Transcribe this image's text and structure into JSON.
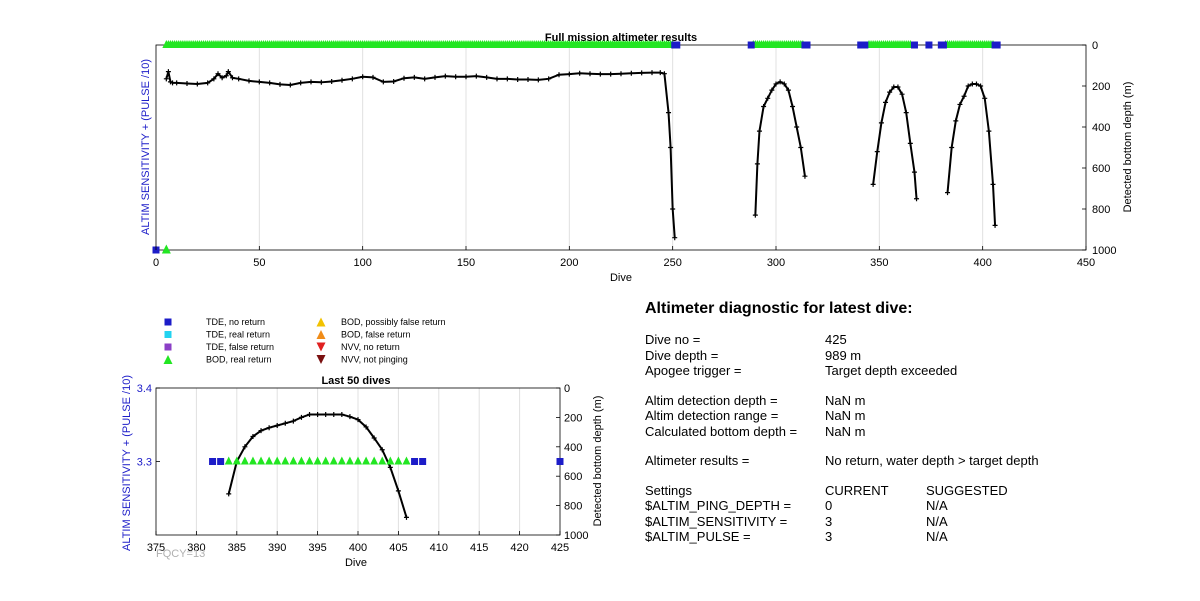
{
  "colors": {
    "tde_no_return": "#1c1cc8",
    "tde_real_return": "#22d3f0",
    "tde_false_return": "#8b3fc6",
    "bod_real_return": "#22e622",
    "bod_possibly_false": "#f2c200",
    "bod_false": "#f08c18",
    "nvv_no_return": "#e02020",
    "nvv_not_pinging": "#7a1010",
    "depth_line": "#000000",
    "left_axis_label": "#1c1cc8",
    "grid": "#e0e0e0"
  },
  "chart_data": [
    {
      "type": "scatter+line",
      "title": "Full mission altimeter results",
      "xlabel": "Dive",
      "ylabel_left": "ALTIM SENSITIVITY + (PULSE /10)",
      "ylabel_right": "Detected bottom depth (m)",
      "xlim": [
        0,
        450
      ],
      "xticks": [
        0,
        50,
        100,
        150,
        200,
        250,
        300,
        350,
        400,
        450
      ],
      "ylim_right": [
        0,
        1000
      ],
      "yticks_right": [
        0,
        200,
        400,
        600,
        800,
        1000
      ],
      "y_right_reversed": true,
      "xgrid": true,
      "depth_segments": [
        [
          [
            5,
            165
          ],
          [
            6,
            130
          ],
          [
            7,
            180
          ],
          [
            8,
            185
          ],
          [
            10,
            185
          ],
          [
            15,
            188
          ],
          [
            20,
            190
          ],
          [
            25,
            185
          ],
          [
            28,
            165
          ],
          [
            30,
            140
          ],
          [
            32,
            160
          ],
          [
            34,
            150
          ],
          [
            35,
            130
          ],
          [
            37,
            160
          ],
          [
            40,
            165
          ],
          [
            45,
            175
          ],
          [
            50,
            180
          ],
          [
            55,
            185
          ],
          [
            60,
            192
          ],
          [
            65,
            195
          ],
          [
            70,
            185
          ],
          [
            75,
            180
          ],
          [
            80,
            182
          ],
          [
            85,
            178
          ],
          [
            90,
            172
          ],
          [
            95,
            165
          ],
          [
            100,
            155
          ],
          [
            105,
            158
          ],
          [
            110,
            180
          ],
          [
            115,
            178
          ],
          [
            120,
            162
          ],
          [
            125,
            158
          ],
          [
            130,
            165
          ],
          [
            135,
            158
          ],
          [
            140,
            152
          ],
          [
            145,
            155
          ],
          [
            150,
            155
          ],
          [
            155,
            152
          ],
          [
            160,
            158
          ],
          [
            165,
            165
          ],
          [
            170,
            165
          ],
          [
            175,
            168
          ],
          [
            180,
            168
          ],
          [
            185,
            170
          ],
          [
            190,
            165
          ],
          [
            195,
            145
          ],
          [
            200,
            142
          ],
          [
            205,
            138
          ],
          [
            210,
            140
          ],
          [
            215,
            142
          ],
          [
            220,
            142
          ],
          [
            225,
            140
          ],
          [
            230,
            138
          ],
          [
            235,
            136
          ],
          [
            240,
            135
          ],
          [
            244,
            135
          ],
          [
            246,
            140
          ],
          [
            248,
            330
          ],
          [
            249,
            500
          ],
          [
            250,
            800
          ],
          [
            251,
            940
          ]
        ],
        [
          [
            290,
            830
          ],
          [
            291,
            580
          ],
          [
            292,
            420
          ],
          [
            294,
            300
          ],
          [
            296,
            260
          ],
          [
            298,
            220
          ],
          [
            300,
            190
          ],
          [
            302,
            180
          ],
          [
            304,
            190
          ],
          [
            306,
            220
          ],
          [
            308,
            300
          ],
          [
            310,
            400
          ],
          [
            312,
            500
          ],
          [
            314,
            640
          ]
        ],
        [
          [
            347,
            680
          ],
          [
            349,
            520
          ],
          [
            351,
            380
          ],
          [
            353,
            280
          ],
          [
            355,
            230
          ],
          [
            357,
            205
          ],
          [
            359,
            205
          ],
          [
            361,
            240
          ],
          [
            363,
            330
          ],
          [
            365,
            480
          ],
          [
            367,
            620
          ],
          [
            368,
            750
          ]
        ],
        [
          [
            383,
            720
          ],
          [
            385,
            500
          ],
          [
            387,
            370
          ],
          [
            389,
            290
          ],
          [
            391,
            250
          ],
          [
            393,
            200
          ],
          [
            395,
            190
          ],
          [
            397,
            190
          ],
          [
            399,
            200
          ],
          [
            401,
            260
          ],
          [
            403,
            420
          ],
          [
            405,
            680
          ],
          [
            406,
            880
          ]
        ]
      ],
      "bod_real_return_ranges": [
        [
          5,
          250
        ],
        [
          289,
          313
        ],
        [
          345,
          365
        ],
        [
          382,
          405
        ]
      ],
      "tde_no_return_points": [
        [
          0,
          1000
        ],
        [
          251,
          0
        ],
        [
          252,
          0
        ],
        [
          288,
          0
        ],
        [
          314,
          0
        ],
        [
          315,
          0
        ],
        [
          341,
          0
        ],
        [
          342,
          0
        ],
        [
          343,
          0
        ],
        [
          367,
          0
        ],
        [
          374,
          0
        ],
        [
          380,
          0
        ],
        [
          381,
          0
        ],
        [
          406,
          0
        ],
        [
          407,
          0
        ]
      ],
      "bod_real_return_extra": [
        [
          5,
          1000
        ]
      ]
    },
    {
      "type": "scatter+line",
      "title": "Last 50 dives",
      "xlabel": "Dive",
      "ylabel_left": "ALTIM SENSITIVITY + (PULSE /10)",
      "ylabel_right": "Detected bottom depth (m)",
      "xlim": [
        375,
        425
      ],
      "xticks": [
        375,
        380,
        385,
        390,
        395,
        400,
        405,
        410,
        415,
        420,
        425
      ],
      "ylim_left": [
        3.2,
        3.4
      ],
      "yticks_left": [
        3.3,
        3.4
      ],
      "ylim_right": [
        0,
        1000
      ],
      "yticks_right": [
        0,
        200,
        400,
        600,
        800,
        1000
      ],
      "y_right_reversed": true,
      "xgrid": true,
      "depth_points": [
        [
          384,
          720
        ],
        [
          385,
          500
        ],
        [
          386,
          400
        ],
        [
          387,
          330
        ],
        [
          388,
          290
        ],
        [
          389,
          270
        ],
        [
          390,
          255
        ],
        [
          391,
          240
        ],
        [
          392,
          225
        ],
        [
          393,
          200
        ],
        [
          394,
          180
        ],
        [
          395,
          180
        ],
        [
          396,
          180
        ],
        [
          397,
          180
        ],
        [
          398,
          180
        ],
        [
          399,
          195
        ],
        [
          400,
          215
        ],
        [
          401,
          265
        ],
        [
          402,
          340
        ],
        [
          403,
          420
        ],
        [
          404,
          540
        ],
        [
          405,
          700
        ],
        [
          406,
          880
        ]
      ],
      "tde_no_return_points": [
        [
          382,
          3.3
        ],
        [
          383,
          3.3
        ],
        [
          407,
          3.3
        ],
        [
          408,
          3.3
        ],
        [
          425,
          3.3
        ]
      ],
      "bod_real_return_range": [
        384,
        406
      ],
      "marker_level": 3.3
    }
  ],
  "corner_label": "FQCY=13",
  "legend": {
    "left": [
      {
        "label": "TDE, no return",
        "marker": "square-icon",
        "color": "#1c1cc8"
      },
      {
        "label": "TDE, real return",
        "marker": "square-icon",
        "color": "#22d3f0"
      },
      {
        "label": "TDE, false return",
        "marker": "square-icon",
        "color": "#8b3fc6"
      },
      {
        "label": "BOD, real return",
        "marker": "triangle-up-icon",
        "color": "#22e622"
      }
    ],
    "right": [
      {
        "label": "BOD, possibly false return",
        "marker": "triangle-up-icon",
        "color": "#f2c200"
      },
      {
        "label": "BOD, false return",
        "marker": "triangle-up-icon",
        "color": "#f08c18"
      },
      {
        "label": "NVV, no return",
        "marker": "triangle-down-icon",
        "color": "#e02020"
      },
      {
        "label": "NVV, not pinging",
        "marker": "triangle-down-icon",
        "color": "#7a1010"
      }
    ]
  },
  "diagnostic": {
    "title": "Altimeter diagnostic for latest dive:",
    "dive_no_label": "Dive no =",
    "dive_no_value": "425",
    "dive_depth_label": "Dive depth =",
    "dive_depth_value": "989 m",
    "apogee_label": "Apogee trigger =",
    "apogee_value": "Target depth exceeded",
    "det_depth_label": "Altim detection depth =",
    "det_depth_value": "NaN m",
    "det_range_label": "Altim detection range =",
    "det_range_value": "NaN m",
    "calc_depth_label": "Calculated bottom depth =",
    "calc_depth_value": "NaN m",
    "results_label": "Altimeter results =",
    "results_value": "No return, water depth > target depth",
    "settings_label": "Settings",
    "current_label": "CURRENT",
    "suggested_label": "SUGGESTED",
    "settings": [
      {
        "name": "$ALTIM_PING_DEPTH =",
        "current": "0",
        "suggested": "N/A"
      },
      {
        "name": "$ALTIM_SENSITIVITY =",
        "current": "3",
        "suggested": "N/A"
      },
      {
        "name": "$ALTIM_PULSE =",
        "current": "3",
        "suggested": "N/A"
      }
    ]
  }
}
